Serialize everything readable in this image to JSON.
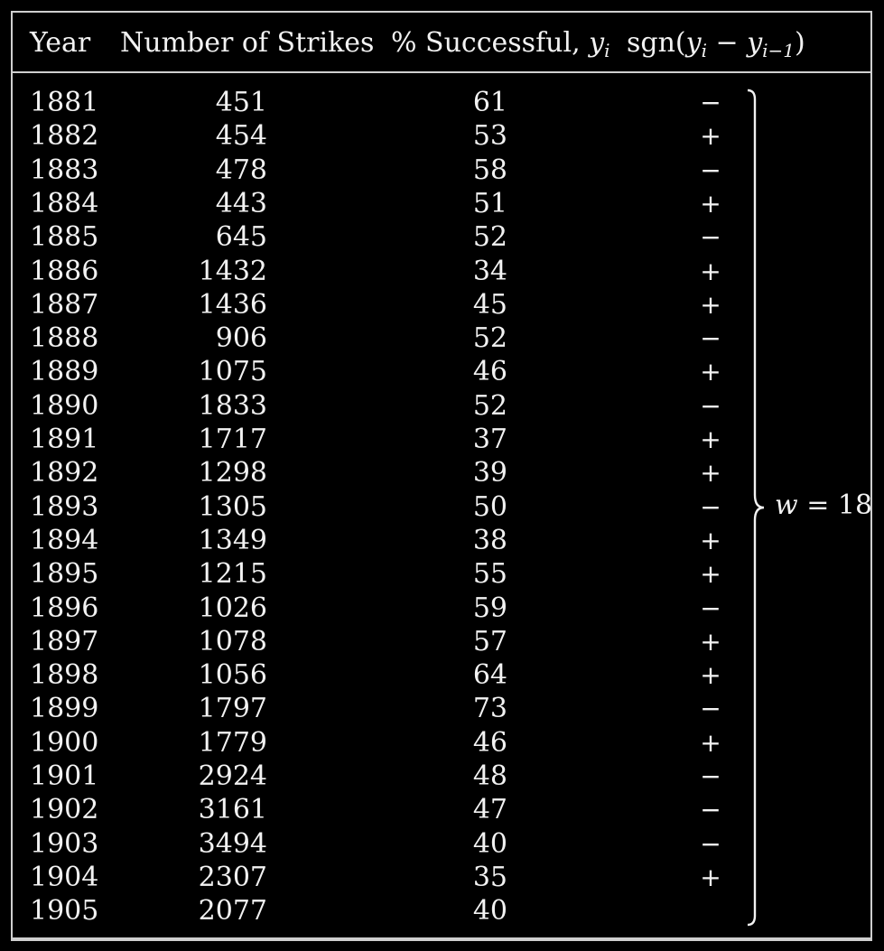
{
  "header": {
    "year": "Year",
    "strikes": "Number of Strikes",
    "success_prefix": "% Successful, ",
    "success_var": "y",
    "success_sub": "i",
    "sign_prefix": "sgn(",
    "sign_y1": "y",
    "sign_sub1": "i",
    "sign_minus": " − ",
    "sign_y2": "y",
    "sign_sub2": "i−1",
    "sign_suffix": ")"
  },
  "rows": [
    {
      "year": "1881",
      "strikes": "451",
      "success": "61",
      "sign": "−"
    },
    {
      "year": "1882",
      "strikes": "454",
      "success": "53",
      "sign": "+"
    },
    {
      "year": "1883",
      "strikes": "478",
      "success": "58",
      "sign": "−"
    },
    {
      "year": "1884",
      "strikes": "443",
      "success": "51",
      "sign": "+"
    },
    {
      "year": "1885",
      "strikes": "645",
      "success": "52",
      "sign": "−"
    },
    {
      "year": "1886",
      "strikes": "1432",
      "success": "34",
      "sign": "+"
    },
    {
      "year": "1887",
      "strikes": "1436",
      "success": "45",
      "sign": "+"
    },
    {
      "year": "1888",
      "strikes": "906",
      "success": "52",
      "sign": "−"
    },
    {
      "year": "1889",
      "strikes": "1075",
      "success": "46",
      "sign": "+"
    },
    {
      "year": "1890",
      "strikes": "1833",
      "success": "52",
      "sign": "−"
    },
    {
      "year": "1891",
      "strikes": "1717",
      "success": "37",
      "sign": "+"
    },
    {
      "year": "1892",
      "strikes": "1298",
      "success": "39",
      "sign": "+"
    },
    {
      "year": "1893",
      "strikes": "1305",
      "success": "50",
      "sign": "−"
    },
    {
      "year": "1894",
      "strikes": "1349",
      "success": "38",
      "sign": "+"
    },
    {
      "year": "1895",
      "strikes": "1215",
      "success": "55",
      "sign": "+"
    },
    {
      "year": "1896",
      "strikes": "1026",
      "success": "59",
      "sign": "−"
    },
    {
      "year": "1897",
      "strikes": "1078",
      "success": "57",
      "sign": "+"
    },
    {
      "year": "1898",
      "strikes": "1056",
      "success": "64",
      "sign": "+"
    },
    {
      "year": "1899",
      "strikes": "1797",
      "success": "73",
      "sign": "−"
    },
    {
      "year": "1900",
      "strikes": "1779",
      "success": "46",
      "sign": "+"
    },
    {
      "year": "1901",
      "strikes": "2924",
      "success": "48",
      "sign": "−"
    },
    {
      "year": "1902",
      "strikes": "3161",
      "success": "47",
      "sign": "−"
    },
    {
      "year": "1903",
      "strikes": "3494",
      "success": "40",
      "sign": "−"
    },
    {
      "year": "1904",
      "strikes": "2307",
      "success": "35",
      "sign": "+"
    },
    {
      "year": "1905",
      "strikes": "2077",
      "success": "40",
      "sign": ""
    }
  ],
  "annotation": {
    "var": "w",
    "rest": " = 18"
  },
  "colors": {
    "background": "#000000",
    "text": "#f2f2f2",
    "rule": "#cfcfcf"
  }
}
